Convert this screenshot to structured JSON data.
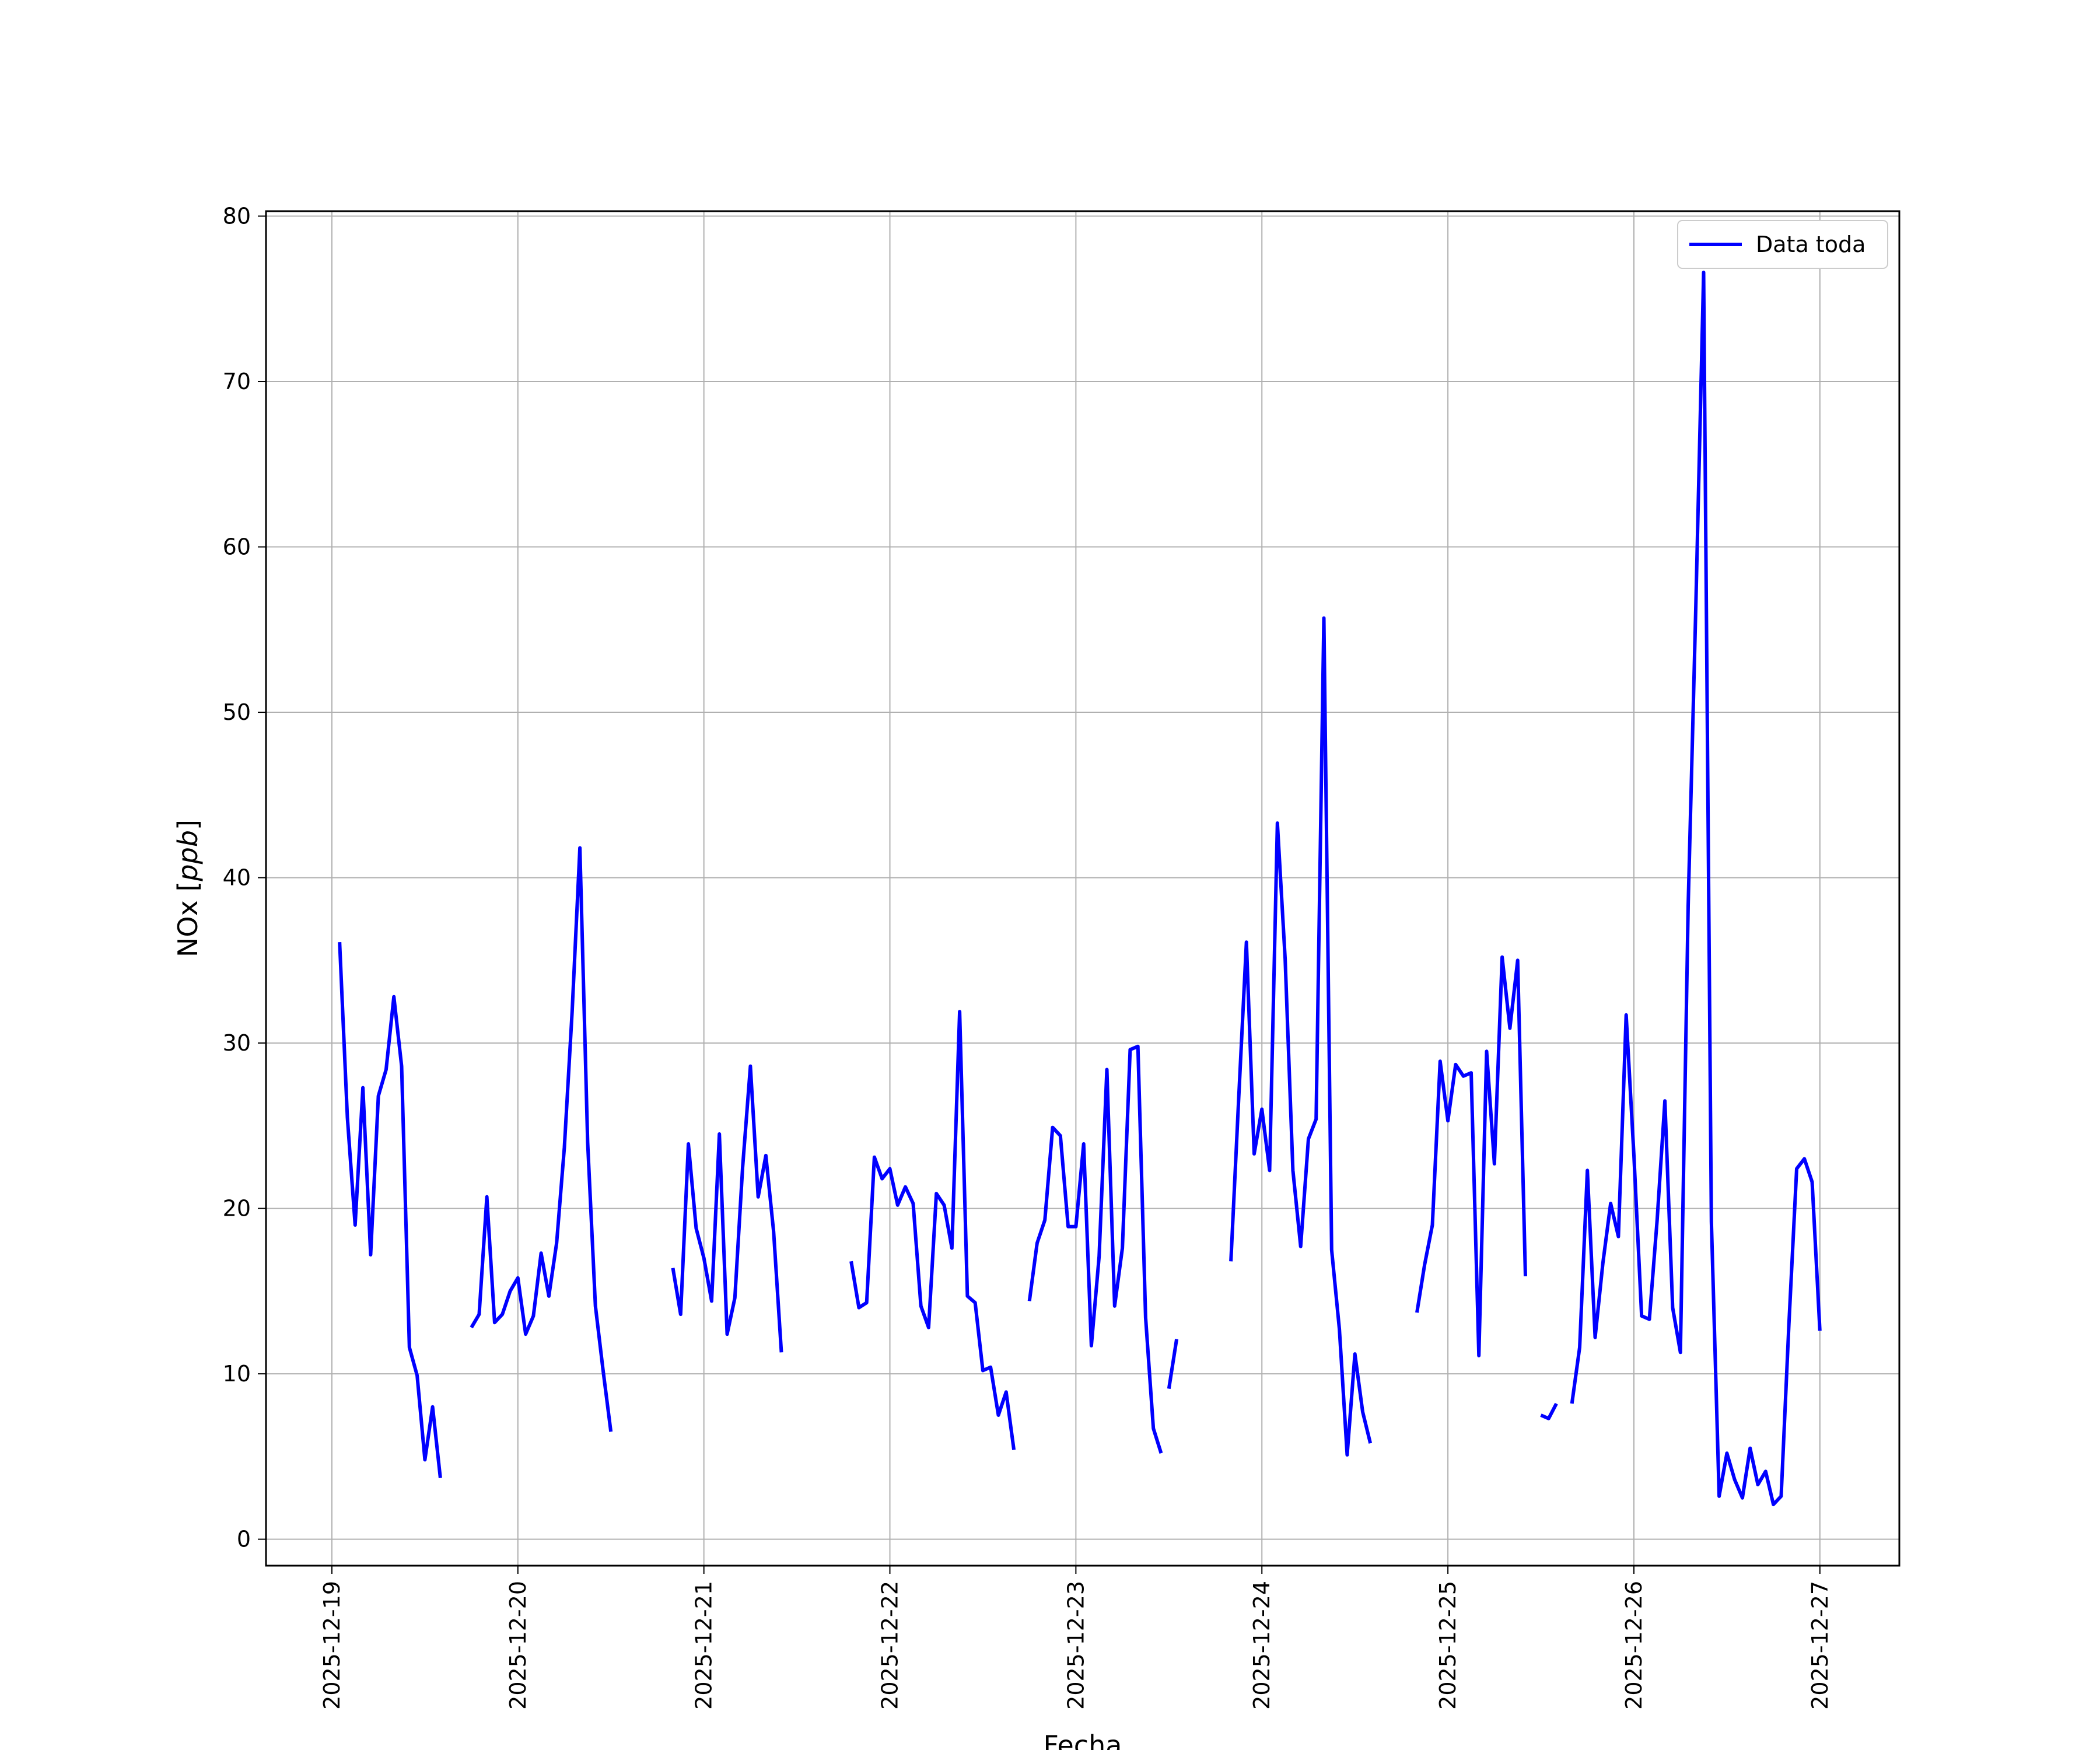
{
  "chart_data": {
    "type": "line",
    "title": "",
    "xlabel": "Fecha",
    "ylabel": "NOx [ppb]",
    "ylabel_unit": "ppb",
    "ylabel_prefix": "NOx",
    "x_ticks": [
      "2025-12-19",
      "2025-12-20",
      "2025-12-21",
      "2025-12-22",
      "2025-12-23",
      "2025-12-24",
      "2025-12-25",
      "2025-12-26",
      "2025-12-27"
    ],
    "y_ticks": [
      0,
      10,
      20,
      30,
      40,
      50,
      60,
      70,
      80
    ],
    "xlim": [
      "2025-12-18 15:30",
      "2025-12-27 10:15"
    ],
    "ylim": [
      -1.6,
      80.3
    ],
    "grid": true,
    "legend": "upper right",
    "series": [
      {
        "name": "Data toda",
        "color": "#0000ff",
        "segments": [
          [
            [
              "2025-12-19 01:00",
              36.1
            ],
            [
              "2025-12-19 02:00",
              25.5
            ],
            [
              "2025-12-19 03:00",
              19.0
            ],
            [
              "2025-12-19 04:00",
              27.3
            ],
            [
              "2025-12-19 05:00",
              17.2
            ],
            [
              "2025-12-19 06:00",
              26.8
            ],
            [
              "2025-12-19 07:00",
              28.4
            ],
            [
              "2025-12-19 08:00",
              32.8
            ],
            [
              "2025-12-19 09:00",
              28.6
            ],
            [
              "2025-12-19 10:00",
              11.6
            ],
            [
              "2025-12-19 11:00",
              9.9
            ],
            [
              "2025-12-19 12:00",
              4.8
            ],
            [
              "2025-12-19 13:00",
              8.0
            ],
            [
              "2025-12-19 14:00",
              3.7
            ]
          ],
          [
            [
              "2025-12-19 18:00",
              12.8
            ],
            [
              "2025-12-19 19:00",
              13.6
            ],
            [
              "2025-12-19 20:00",
              20.7
            ],
            [
              "2025-12-19 21:00",
              13.1
            ],
            [
              "2025-12-19 22:00",
              13.6
            ],
            [
              "2025-12-19 23:00",
              15.0
            ],
            [
              "2025-12-20 00:00",
              15.8
            ],
            [
              "2025-12-20 01:00",
              12.4
            ],
            [
              "2025-12-20 02:00",
              13.5
            ],
            [
              "2025-12-20 03:00",
              17.3
            ],
            [
              "2025-12-20 04:00",
              14.7
            ],
            [
              "2025-12-20 05:00",
              17.9
            ],
            [
              "2025-12-20 06:00",
              23.7
            ],
            [
              "2025-12-20 07:00",
              31.9
            ],
            [
              "2025-12-20 08:00",
              41.8
            ],
            [
              "2025-12-20 09:00",
              24.0
            ],
            [
              "2025-12-20 10:00",
              14.1
            ],
            [
              "2025-12-20 11:00",
              10.2
            ],
            [
              "2025-12-20 12:00",
              6.5
            ]
          ],
          [
            [
              "2025-12-20 20:00",
              16.4
            ],
            [
              "2025-12-20 21:00",
              13.6
            ],
            [
              "2025-12-20 22:00",
              23.9
            ],
            [
              "2025-12-20 23:00",
              18.8
            ],
            [
              "2025-12-21 00:00",
              17.0
            ],
            [
              "2025-12-21 01:00",
              14.4
            ],
            [
              "2025-12-21 02:00",
              24.5
            ],
            [
              "2025-12-21 03:00",
              12.4
            ],
            [
              "2025-12-21 04:00",
              14.6
            ],
            [
              "2025-12-21 05:00",
              22.5
            ],
            [
              "2025-12-21 06:00",
              28.6
            ],
            [
              "2025-12-21 07:00",
              20.7
            ],
            [
              "2025-12-21 08:00",
              23.2
            ],
            [
              "2025-12-21 09:00",
              18.6
            ],
            [
              "2025-12-21 10:00",
              11.3
            ]
          ],
          [
            [
              "2025-12-21 19:00",
              16.8
            ],
            [
              "2025-12-21 20:00",
              14.0
            ],
            [
              "2025-12-21 21:00",
              14.3
            ],
            [
              "2025-12-21 22:00",
              23.1
            ],
            [
              "2025-12-21 23:00",
              21.8
            ],
            [
              "2025-12-22 00:00",
              22.4
            ],
            [
              "2025-12-22 01:00",
              20.2
            ],
            [
              "2025-12-22 02:00",
              21.3
            ],
            [
              "2025-12-22 03:00",
              20.3
            ],
            [
              "2025-12-22 04:00",
              14.1
            ],
            [
              "2025-12-22 05:00",
              12.8
            ],
            [
              "2025-12-22 06:00",
              20.9
            ],
            [
              "2025-12-22 07:00",
              20.2
            ],
            [
              "2025-12-22 08:00",
              17.6
            ],
            [
              "2025-12-22 09:00",
              31.9
            ],
            [
              "2025-12-22 10:00",
              14.7
            ],
            [
              "2025-12-22 11:00",
              14.3
            ],
            [
              "2025-12-22 12:00",
              10.2
            ],
            [
              "2025-12-22 13:00",
              10.4
            ],
            [
              "2025-12-22 14:00",
              7.5
            ],
            [
              "2025-12-22 15:00",
              8.9
            ],
            [
              "2025-12-22 16:00",
              5.4
            ]
          ],
          [
            [
              "2025-12-22 18:00",
              14.4
            ],
            [
              "2025-12-22 19:00",
              17.9
            ],
            [
              "2025-12-22 20:00",
              19.3
            ],
            [
              "2025-12-22 21:00",
              24.9
            ],
            [
              "2025-12-22 22:00",
              24.4
            ],
            [
              "2025-12-22 23:00",
              18.9
            ],
            [
              "2025-12-23 00:00",
              18.9
            ],
            [
              "2025-12-23 01:00",
              23.9
            ],
            [
              "2025-12-23 02:00",
              11.7
            ],
            [
              "2025-12-23 03:00",
              17.1
            ],
            [
              "2025-12-23 04:00",
              28.4
            ],
            [
              "2025-12-23 05:00",
              14.1
            ],
            [
              "2025-12-23 06:00",
              17.6
            ],
            [
              "2025-12-23 07:00",
              29.6
            ],
            [
              "2025-12-23 08:00",
              29.8
            ],
            [
              "2025-12-23 09:00",
              13.4
            ],
            [
              "2025-12-23 10:00",
              6.7
            ],
            [
              "2025-12-23 11:00",
              5.2
            ]
          ],
          [
            [
              "2025-12-23 12:00",
              9.1
            ],
            [
              "2025-12-23 13:00",
              12.1
            ]
          ],
          [
            [
              "2025-12-23 20:00",
              16.8
            ],
            [
              "2025-12-23 21:00",
              26.6
            ],
            [
              "2025-12-23 22:00",
              36.1
            ],
            [
              "2025-12-23 23:00",
              23.3
            ],
            [
              "2025-12-24 00:00",
              26.0
            ],
            [
              "2025-12-24 01:00",
              22.3
            ],
            [
              "2025-12-24 02:00",
              43.3
            ],
            [
              "2025-12-24 03:00",
              35.1
            ],
            [
              "2025-12-24 04:00",
              22.3
            ],
            [
              "2025-12-24 05:00",
              17.7
            ],
            [
              "2025-12-24 06:00",
              24.2
            ],
            [
              "2025-12-24 07:00",
              25.4
            ],
            [
              "2025-12-24 08:00",
              55.7
            ],
            [
              "2025-12-24 09:00",
              17.5
            ],
            [
              "2025-12-24 10:00",
              12.7
            ],
            [
              "2025-12-24 11:00",
              5.1
            ],
            [
              "2025-12-24 12:00",
              11.2
            ],
            [
              "2025-12-24 13:00",
              7.7
            ],
            [
              "2025-12-24 14:00",
              5.8
            ]
          ],
          [
            [
              "2025-12-24 20:00",
              13.7
            ],
            [
              "2025-12-24 21:00",
              16.6
            ],
            [
              "2025-12-24 22:00",
              19.0
            ],
            [
              "2025-12-24 23:00",
              28.9
            ],
            [
              "2025-12-25 00:00",
              25.3
            ],
            [
              "2025-12-25 01:00",
              28.7
            ],
            [
              "2025-12-25 02:00",
              28.0
            ],
            [
              "2025-12-25 03:00",
              28.2
            ],
            [
              "2025-12-25 04:00",
              11.1
            ],
            [
              "2025-12-25 05:00",
              29.5
            ],
            [
              "2025-12-25 06:00",
              22.7
            ],
            [
              "2025-12-25 07:00",
              35.2
            ],
            [
              "2025-12-25 08:00",
              30.9
            ],
            [
              "2025-12-25 09:00",
              35.0
            ],
            [
              "2025-12-25 10:00",
              15.9
            ]
          ],
          [
            [
              "2025-12-25 12:00",
              7.5
            ],
            [
              "2025-12-25 13:00",
              7.3
            ],
            [
              "2025-12-25 14:00",
              8.2
            ]
          ],
          [
            [
              "2025-12-25 16:00",
              8.2
            ],
            [
              "2025-12-25 17:00",
              11.6
            ],
            [
              "2025-12-25 18:00",
              22.3
            ],
            [
              "2025-12-25 19:00",
              12.2
            ],
            [
              "2025-12-25 20:00",
              16.7
            ],
            [
              "2025-12-25 21:00",
              20.3
            ],
            [
              "2025-12-25 22:00",
              18.3
            ],
            [
              "2025-12-25 23:00",
              31.7
            ],
            [
              "2025-12-26 00:00",
              23.2
            ],
            [
              "2025-12-26 01:00",
              13.5
            ],
            [
              "2025-12-26 02:00",
              13.3
            ],
            [
              "2025-12-26 03:00",
              19.3
            ],
            [
              "2025-12-26 04:00",
              26.5
            ],
            [
              "2025-12-26 05:00",
              14.0
            ],
            [
              "2025-12-26 06:00",
              11.3
            ],
            [
              "2025-12-26 07:00",
              38.3
            ],
            [
              "2025-12-26 08:00",
              56.5
            ],
            [
              "2025-12-26 09:00",
              76.6
            ],
            [
              "2025-12-26 10:00",
              19.2
            ],
            [
              "2025-12-26 11:00",
              2.6
            ],
            [
              "2025-12-26 12:00",
              5.2
            ],
            [
              "2025-12-26 13:00",
              3.6
            ],
            [
              "2025-12-26 14:00",
              2.5
            ],
            [
              "2025-12-26 15:00",
              5.5
            ],
            [
              "2025-12-26 16:00",
              3.3
            ],
            [
              "2025-12-26 17:00",
              4.1
            ],
            [
              "2025-12-26 18:00",
              2.1
            ],
            [
              "2025-12-26 19:00",
              2.6
            ],
            [
              "2025-12-26 20:00",
              13.0
            ],
            [
              "2025-12-26 21:00",
              22.4
            ],
            [
              "2025-12-26 22:00",
              23.0
            ],
            [
              "2025-12-26 23:00",
              21.6
            ],
            [
              "2025-12-27 00:00",
              12.6
            ]
          ]
        ]
      }
    ]
  }
}
